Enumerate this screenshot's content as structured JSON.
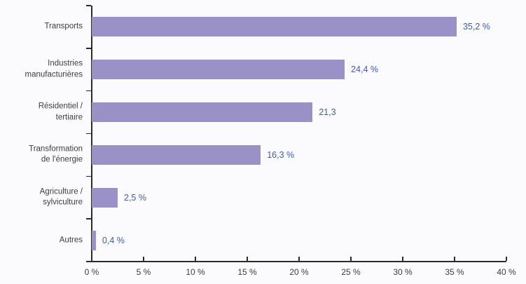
{
  "chart_data": {
    "type": "bar",
    "orientation": "horizontal",
    "title": "",
    "xlabel": "",
    "ylabel": "",
    "categories": [
      "Transports",
      "Industries manufacturières",
      "Résidentiel / tertiaire",
      "Transformation de l'énergie",
      "Agriculture / sylviculture",
      "Autres"
    ],
    "category_label_lines": [
      [
        "Transports"
      ],
      [
        "Industries",
        "manufacturières"
      ],
      [
        "Résidentiel /",
        "tertiaire"
      ],
      [
        "Transformation",
        "de l'énergie"
      ],
      [
        "Agriculture /",
        "sylviculture"
      ],
      [
        "Autres"
      ]
    ],
    "values": [
      35.2,
      24.4,
      21.3,
      16.3,
      2.5,
      0.4
    ],
    "value_labels": [
      "35,2 %",
      "24,4 %",
      "21,3",
      "16,3 %",
      "2,5 %",
      "0,4 %"
    ],
    "x_tick_values": [
      0,
      5,
      10,
      15,
      20,
      25,
      30,
      35,
      40
    ],
    "x_tick_labels": [
      "0 %",
      "5 %",
      "10 %",
      "15 %",
      "20 %",
      "25 %",
      "30 %",
      "35 %",
      "40 %"
    ],
    "xlim": [
      0,
      40
    ],
    "grid": false,
    "legend": false,
    "colors": {
      "background": "#fbfbfe",
      "bar": "#9a92c7",
      "value_label": "#3f5cad",
      "axis": "#2b2b2b",
      "tick_label": "#3d3d3d",
      "category_label": "#3d3d3d"
    }
  }
}
